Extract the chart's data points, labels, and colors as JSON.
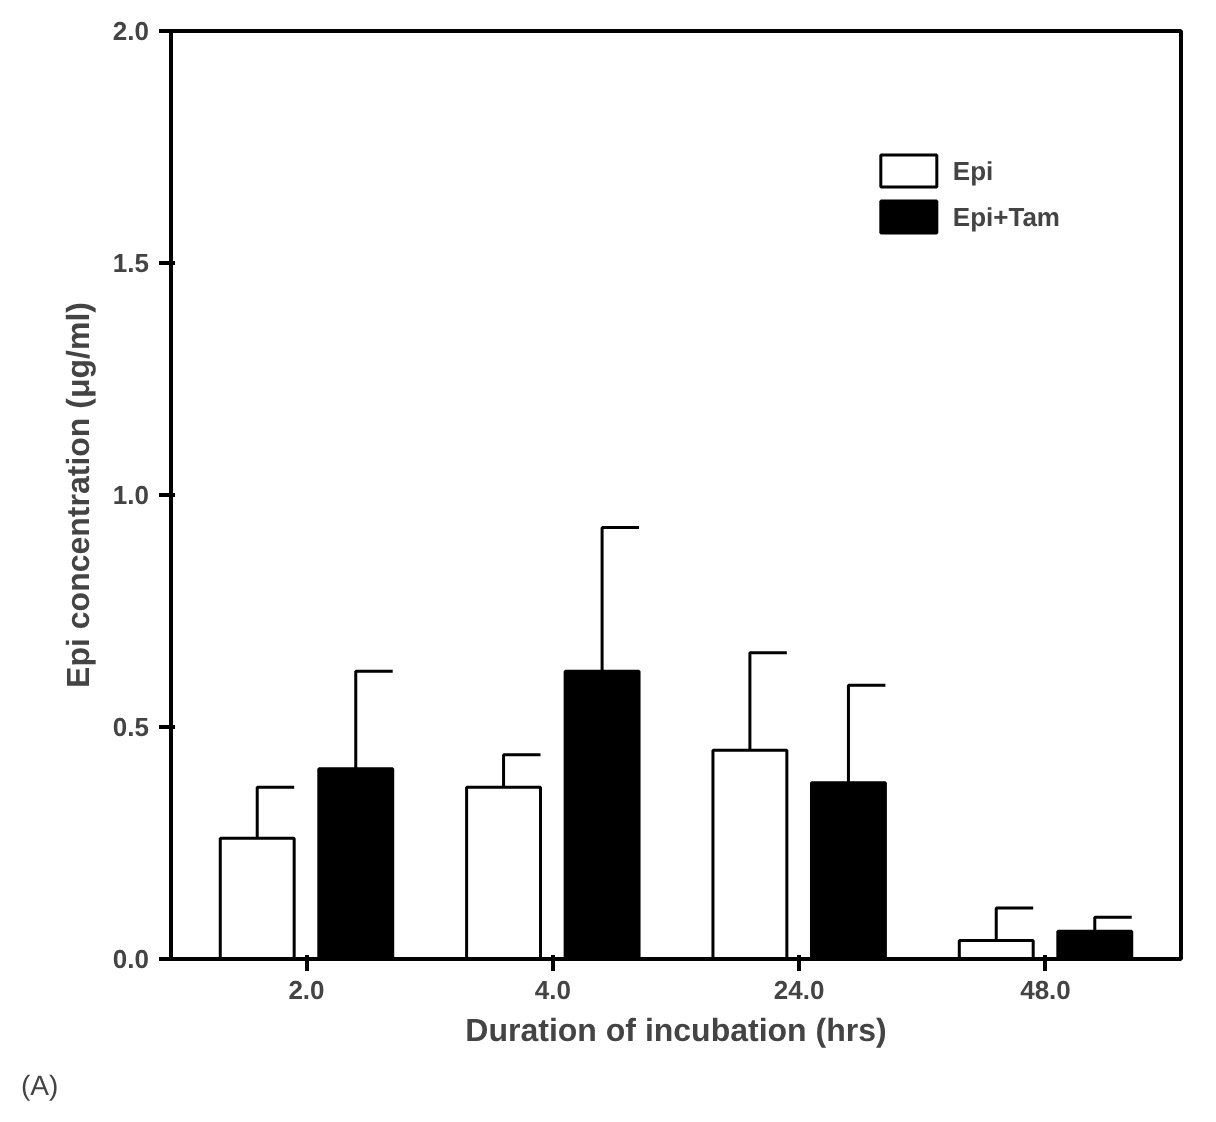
{
  "chart_data": {
    "type": "bar",
    "xlabel": "Duration of incubation (hrs)",
    "ylabel": "Epi concentration (μg/ml)",
    "categories": [
      "2.0",
      "4.0",
      "24.0",
      "48.0"
    ],
    "series": [
      {
        "name": "Epi",
        "color": "#ffffff",
        "values": [
          0.26,
          0.37,
          0.45,
          0.04
        ],
        "errors": [
          [
            0.26,
            0.37
          ],
          [
            0.37,
            0.44
          ],
          [
            0.45,
            0.66
          ],
          [
            0.04,
            0.11
          ]
        ]
      },
      {
        "name": "Epi+Tam",
        "color": "#000000",
        "values": [
          0.41,
          0.62,
          0.38,
          0.06
        ],
        "errors": [
          [
            0.41,
            0.62
          ],
          [
            0.62,
            0.93
          ],
          [
            0.38,
            0.59
          ],
          [
            0.06,
            0.09
          ]
        ]
      }
    ],
    "ylim": [
      0,
      2.0
    ],
    "yticks": [
      {
        "value": 0,
        "label": "0.0"
      },
      {
        "value": 0.5,
        "label": "0.5"
      },
      {
        "value": 1.0,
        "label": "1.0"
      },
      {
        "value": 1.5,
        "label": "1.5"
      },
      {
        "value": 2.0,
        "label": "2.0"
      }
    ],
    "grid": false,
    "legend": "top right",
    "annotations": [
      "(A)"
    ]
  }
}
